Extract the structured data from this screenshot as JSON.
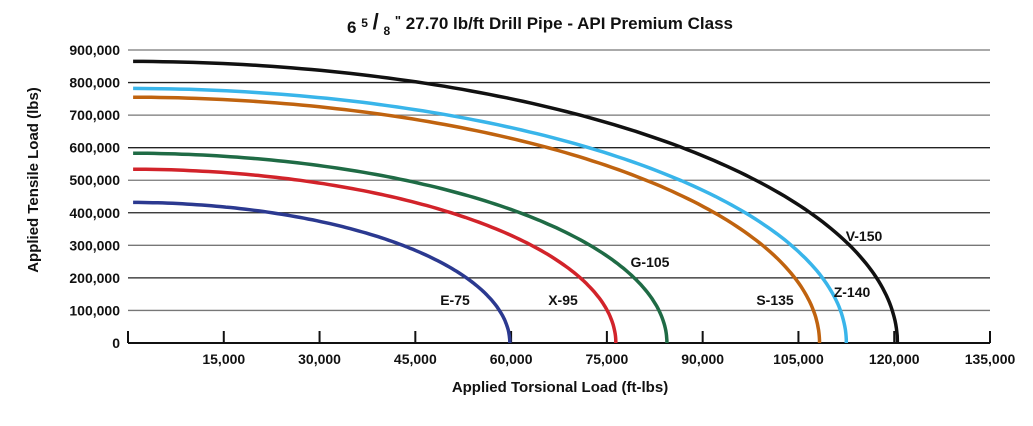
{
  "chart_data": {
    "type": "line",
    "title": {
      "main": "6",
      "sup": "5",
      "slash": "/",
      "sub": "8",
      "inch": "\"",
      "rest": " 27.70 lb/ft Drill Pipe - API Premium Class"
    },
    "xlabel": "Applied Torsional Load (ft-lbs)",
    "ylabel": "Applied Tensile Load (lbs)",
    "xlim": [
      0,
      135000
    ],
    "ylim": [
      0,
      900000
    ],
    "xticks": [
      15000,
      30000,
      45000,
      60000,
      75000,
      90000,
      105000,
      120000,
      135000
    ],
    "xtick_labels": [
      "15,000",
      "30,000",
      "45,000",
      "60,000",
      "75,000",
      "90,000",
      "105,000",
      "120,000",
      "135,000"
    ],
    "yticks": [
      0,
      100000,
      200000,
      300000,
      400000,
      500000,
      600000,
      700000,
      800000,
      900000
    ],
    "ytick_labels": [
      "0",
      "100,000",
      "200,000",
      "300,000",
      "400,000",
      "500,000",
      "600,000",
      "700,000",
      "800,000",
      "900,000"
    ],
    "grid": "horizontal",
    "series": [
      {
        "name": "E-75",
        "color": "#2b3990",
        "max_tensile": 432000,
        "max_torsion": 59800
      },
      {
        "name": "X-95",
        "color": "#d2232a",
        "max_tensile": 534000,
        "max_torsion": 76400
      },
      {
        "name": "G-105",
        "color": "#1f6b45",
        "max_tensile": 583000,
        "max_torsion": 84400
      },
      {
        "name": "S-135",
        "color": "#c0630f",
        "max_tensile": 755000,
        "max_torsion": 108300
      },
      {
        "name": "Z-140",
        "color": "#39b5ea",
        "max_tensile": 782000,
        "max_torsion": 112500
      },
      {
        "name": "V-150",
        "color": "#111111",
        "max_tensile": 865000,
        "max_torsion": 120500
      }
    ]
  }
}
